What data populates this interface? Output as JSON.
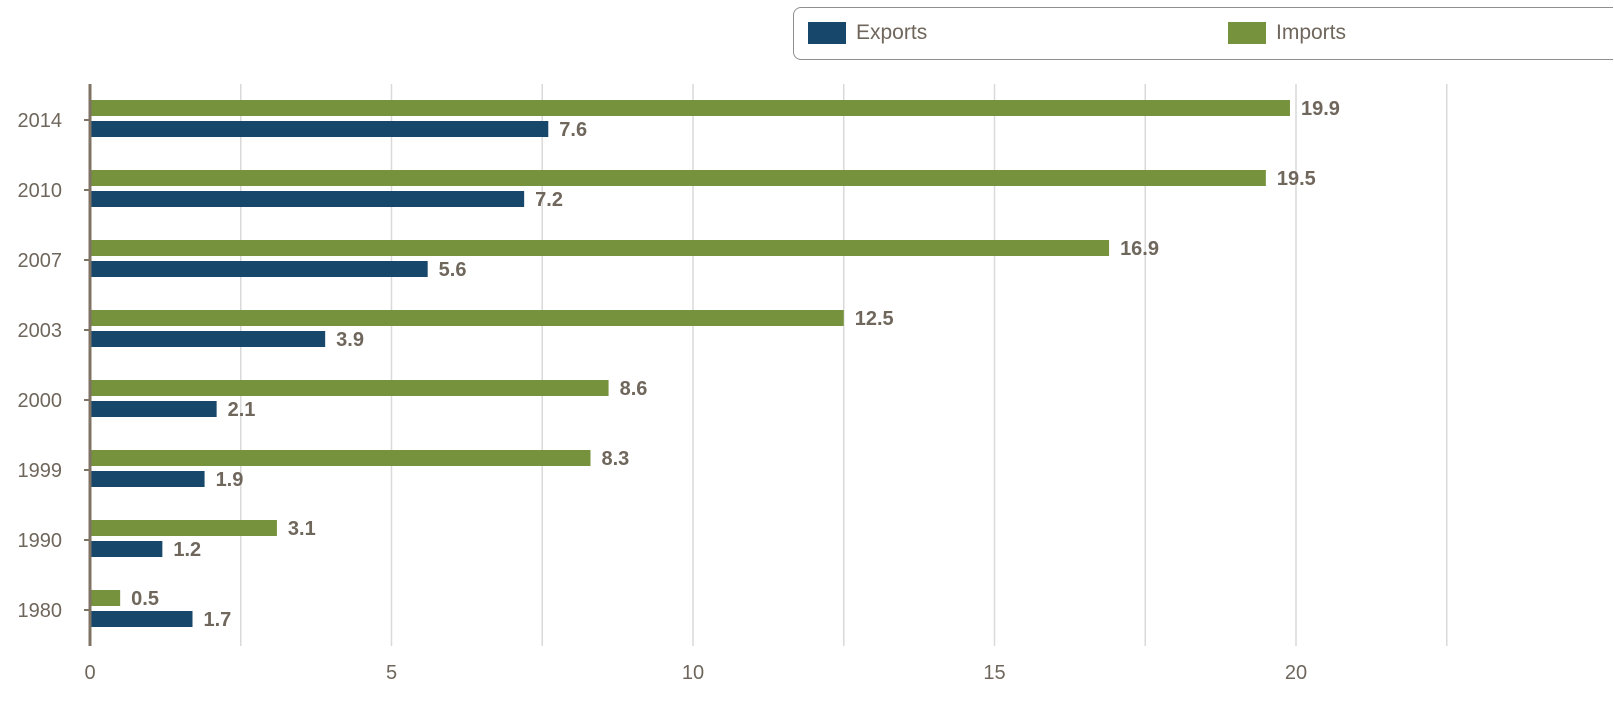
{
  "chart_data": {
    "type": "bar",
    "orientation": "horizontal",
    "categories": [
      "2014",
      "2010",
      "2007",
      "2003",
      "2000",
      "1999",
      "1990",
      "1980"
    ],
    "series": [
      {
        "name": "Imports",
        "color": "#76923c",
        "values": [
          19.9,
          19.5,
          16.9,
          12.5,
          8.6,
          8.3,
          3.1,
          0.5
        ]
      },
      {
        "name": "Exports",
        "color": "#17476b",
        "values": [
          7.6,
          7.2,
          5.6,
          3.9,
          2.1,
          1.9,
          1.2,
          1.7
        ]
      }
    ],
    "xticks": [
      "0",
      "5",
      "10",
      "15",
      "20"
    ],
    "xlim": [
      0,
      24
    ],
    "grid": true,
    "legend_position": "top-right",
    "title": "",
    "xlabel": "",
    "ylabel": ""
  },
  "legend": {
    "items": [
      {
        "label": "Exports",
        "color": "#17476b"
      },
      {
        "label": "Imports",
        "color": "#76923c"
      }
    ]
  }
}
